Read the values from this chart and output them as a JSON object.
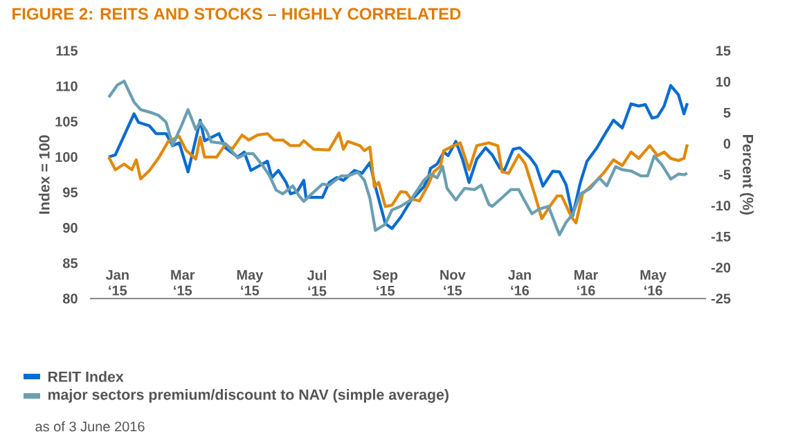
{
  "chart_data": {
    "type": "line",
    "title": "FIGURE 2: REITS AND STOCKS – HIGHLY CORRELATED",
    "ylabel": "Index = 100",
    "y2label": "Percent (%)",
    "annotations": [
      "as of 3 June 2016"
    ],
    "xlim": [
      "2014-12-07",
      "2016-06-18"
    ],
    "xticks": [
      {
        "value": "2015-01-01",
        "label": "Jan ‘15"
      },
      {
        "value": "2015-03-01",
        "label": "Mar ‘15"
      },
      {
        "value": "2015-05-01",
        "label": "May ‘15"
      },
      {
        "value": "2015-07-01",
        "label": "Jul ‘15"
      },
      {
        "value": "2015-09-01",
        "label": "Sep ‘15"
      },
      {
        "value": "2015-11-01",
        "label": "Nov ‘15"
      },
      {
        "value": "2016-01-01",
        "label": "Jan ‘16"
      },
      {
        "value": "2016-03-01",
        "label": "Mar ‘16"
      },
      {
        "value": "2016-05-01",
        "label": "May ‘16"
      }
    ],
    "ylim": [
      80,
      115
    ],
    "yticks": [
      80,
      85,
      90,
      95,
      100,
      105,
      110,
      115
    ],
    "y2lim": [
      -25,
      15
    ],
    "y2ticks": [
      -25,
      -20,
      -15,
      -10,
      -5,
      0,
      5,
      10,
      15
    ],
    "legend": "bottom",
    "line_style": "solid",
    "grid": false,
    "series": [
      {
        "name": "REIT Index",
        "color": "#0a6cd0",
        "x": [
          "2014-12-24",
          "2014-12-30",
          "2015-01-16",
          "2015-01-20",
          "2015-01-30",
          "2015-02-05",
          "2015-02-14",
          "2015-02-20",
          "2015-02-26",
          "2015-03-06",
          "2015-03-17",
          "2015-03-21",
          "2015-04-03",
          "2015-04-09",
          "2015-04-20",
          "2015-04-26",
          "2015-05-02",
          "2015-05-17",
          "2015-05-21",
          "2015-05-27",
          "2015-06-03",
          "2015-06-07",
          "2015-06-13",
          "2015-06-19",
          "2015-06-21",
          "2015-07-06",
          "2015-07-12",
          "2015-07-19",
          "2015-07-25",
          "2015-08-04",
          "2015-08-11",
          "2015-08-18",
          "2015-08-23",
          "2015-09-01",
          "2015-09-07",
          "2015-09-15",
          "2015-09-24",
          "2015-10-06",
          "2015-10-10",
          "2015-10-12",
          "2015-10-18",
          "2015-10-24",
          "2015-10-28",
          "2015-11-04",
          "2015-11-10",
          "2015-11-16",
          "2015-11-23",
          "2015-12-01",
          "2015-12-07",
          "2015-12-14",
          "2015-12-18",
          "2015-12-26",
          "2016-01-01",
          "2016-01-10",
          "2016-01-16",
          "2016-01-22",
          "2016-01-31",
          "2016-02-06",
          "2016-02-12",
          "2016-02-18",
          "2016-02-25",
          "2016-03-02",
          "2016-03-11",
          "2016-03-17",
          "2016-03-26",
          "2016-04-03",
          "2016-04-11",
          "2016-04-18",
          "2016-04-24",
          "2016-04-30",
          "2016-05-05",
          "2016-05-11",
          "2016-05-17",
          "2016-05-24",
          "2016-05-29",
          "2016-06-01"
        ],
        "values": [
          100.0,
          100.3,
          106.1,
          104.9,
          104.4,
          103.3,
          103.3,
          101.6,
          102.0,
          97.9,
          105.2,
          102.3,
          103.3,
          101.3,
          100.0,
          100.7,
          98.1,
          99.4,
          97.1,
          98.1,
          96.4,
          94.8,
          95.1,
          96.7,
          94.3,
          94.3,
          96.4,
          97.1,
          96.7,
          98.1,
          97.7,
          99.2,
          95.8,
          90.6,
          89.9,
          91.5,
          93.8,
          95.8,
          97.1,
          98.4,
          99.0,
          100.7,
          100.2,
          102.2,
          99.7,
          96.4,
          99.7,
          101.3,
          100.3,
          98.4,
          98.1,
          101.1,
          101.3,
          100.0,
          98.7,
          95.9,
          98.0,
          97.9,
          96.1,
          91.7,
          96.4,
          99.4,
          101.3,
          102.9,
          105.2,
          104.1,
          107.5,
          107.2,
          107.4,
          105.5,
          105.7,
          107.2,
          110.1,
          108.8,
          106.1,
          107.6
        ]
      },
      {
        "color": "#e08a0c",
        "x": [
          "2014-12-24",
          "2014-12-30",
          "2015-01-07",
          "2015-01-14",
          "2015-01-18",
          "2015-01-22",
          "2015-01-30",
          "2015-02-07",
          "2015-02-16",
          "2015-02-26",
          "2015-03-04",
          "2015-03-13",
          "2015-03-17",
          "2015-03-21",
          "2015-04-01",
          "2015-04-09",
          "2015-04-15",
          "2015-04-24",
          "2015-04-30",
          "2015-05-08",
          "2015-05-17",
          "2015-05-23",
          "2015-05-31",
          "2015-06-07",
          "2015-06-15",
          "2015-06-19",
          "2015-06-28",
          "2015-07-12",
          "2015-07-21",
          "2015-07-25",
          "2015-07-29",
          "2015-08-09",
          "2015-08-13",
          "2015-08-18",
          "2015-08-22",
          "2015-08-26",
          "2015-09-01",
          "2015-09-07",
          "2015-09-15",
          "2015-09-20",
          "2015-09-24",
          "2015-10-02",
          "2015-10-10",
          "2015-10-15",
          "2015-10-21",
          "2015-10-24",
          "2015-11-02",
          "2015-11-08",
          "2015-11-16",
          "2015-11-23",
          "2015-12-04",
          "2015-12-12",
          "2015-12-16",
          "2015-12-22",
          "2015-12-31",
          "2016-01-06",
          "2016-01-15",
          "2016-01-21",
          "2016-01-29",
          "2016-02-04",
          "2016-02-08",
          "2016-02-17",
          "2016-02-21",
          "2016-02-27",
          "2016-03-09",
          "2016-03-17",
          "2016-03-26",
          "2016-04-03",
          "2016-04-11",
          "2016-04-18",
          "2016-04-28",
          "2016-05-05",
          "2016-05-11",
          "2016-05-17",
          "2016-05-24",
          "2016-05-29",
          "2016-06-01"
        ],
        "values": [
          100.0,
          98.2,
          99.0,
          98.2,
          99.6,
          96.9,
          98.1,
          99.8,
          102.2,
          102.9,
          101.0,
          99.7,
          102.8,
          100.0,
          100.0,
          101.8,
          101.1,
          103.1,
          102.4,
          103.1,
          103.3,
          102.4,
          102.4,
          101.6,
          101.6,
          102.3,
          101.1,
          101.0,
          103.4,
          101.1,
          102.2,
          101.6,
          100.9,
          101.4,
          95.8,
          96.4,
          93.0,
          93.2,
          95.1,
          95.0,
          94.1,
          93.8,
          96.1,
          97.9,
          98.7,
          100.9,
          101.6,
          102.0,
          98.2,
          101.6,
          102.0,
          101.6,
          97.9,
          97.7,
          100.3,
          99.0,
          94.5,
          91.3,
          93.2,
          94.5,
          94.5,
          91.5,
          90.7,
          94.8,
          96.4,
          97.7,
          99.6,
          98.8,
          100.7,
          99.8,
          101.6,
          100.2,
          100.7,
          99.8,
          99.5,
          99.8,
          101.8
        ]
      },
      {
        "name": "major sectors premium/discount to NAV (simple average)",
        "color": "#6b9fb2",
        "axis": "y2",
        "x": [
          "2014-12-24",
          "2015-01-01",
          "2015-01-07",
          "2015-01-16",
          "2015-01-22",
          "2015-02-01",
          "2015-02-07",
          "2015-02-14",
          "2015-02-20",
          "2015-02-28",
          "2015-03-06",
          "2015-03-13",
          "2015-03-17",
          "2015-03-23",
          "2015-03-27",
          "2015-04-09",
          "2015-04-20",
          "2015-04-28",
          "2015-05-04",
          "2015-05-13",
          "2015-05-19",
          "2015-05-25",
          "2015-05-31",
          "2015-06-09",
          "2015-06-15",
          "2015-06-19",
          "2015-06-28",
          "2015-07-06",
          "2015-07-12",
          "2015-07-23",
          "2015-07-29",
          "2015-08-07",
          "2015-08-13",
          "2015-08-18",
          "2015-08-23",
          "2015-09-01",
          "2015-09-07",
          "2015-09-15",
          "2015-09-24",
          "2015-10-06",
          "2015-10-12",
          "2015-10-18",
          "2015-10-23",
          "2015-10-27",
          "2015-11-04",
          "2015-11-12",
          "2015-11-21",
          "2015-11-27",
          "2015-12-04",
          "2015-12-07",
          "2015-12-16",
          "2015-12-24",
          "2015-12-31",
          "2016-01-06",
          "2016-01-12",
          "2016-01-18",
          "2016-01-27",
          "2016-02-06",
          "2016-02-12",
          "2016-02-18",
          "2016-02-25",
          "2016-03-05",
          "2016-03-13",
          "2016-03-20",
          "2016-03-28",
          "2016-04-03",
          "2016-04-11",
          "2016-04-20",
          "2016-04-26",
          "2016-05-02",
          "2016-05-09",
          "2016-05-17",
          "2016-05-24",
          "2016-05-29",
          "2016-06-01"
        ],
        "values": [
          7.5,
          9.5,
          10.1,
          6.7,
          5.5,
          5.0,
          4.6,
          3.5,
          -0.2,
          2.9,
          5.5,
          2.3,
          3.5,
          2.0,
          0.3,
          0.0,
          -2.3,
          -1.6,
          -1.6,
          -3.6,
          -5.2,
          -7.5,
          -8.1,
          -6.8,
          -8.5,
          -9.3,
          -7.8,
          -6.5,
          -6.7,
          -5.2,
          -5.2,
          -4.6,
          -5.9,
          -8.8,
          -14.0,
          -13.0,
          -10.7,
          -10.1,
          -9.1,
          -5.9,
          -4.9,
          -5.5,
          -3.7,
          -7.2,
          -9.1,
          -7.2,
          -7.4,
          -6.7,
          -9.8,
          -10.1,
          -8.7,
          -7.4,
          -7.4,
          -9.4,
          -11.3,
          -10.6,
          -10.1,
          -14.7,
          -12.7,
          -11.4,
          -8.1,
          -7.2,
          -5.5,
          -6.8,
          -3.7,
          -4.2,
          -4.4,
          -5.2,
          -5.2,
          -2.0,
          -3.4,
          -5.7,
          -4.9,
          -5.0,
          -4.8
        ]
      }
    ]
  }
}
